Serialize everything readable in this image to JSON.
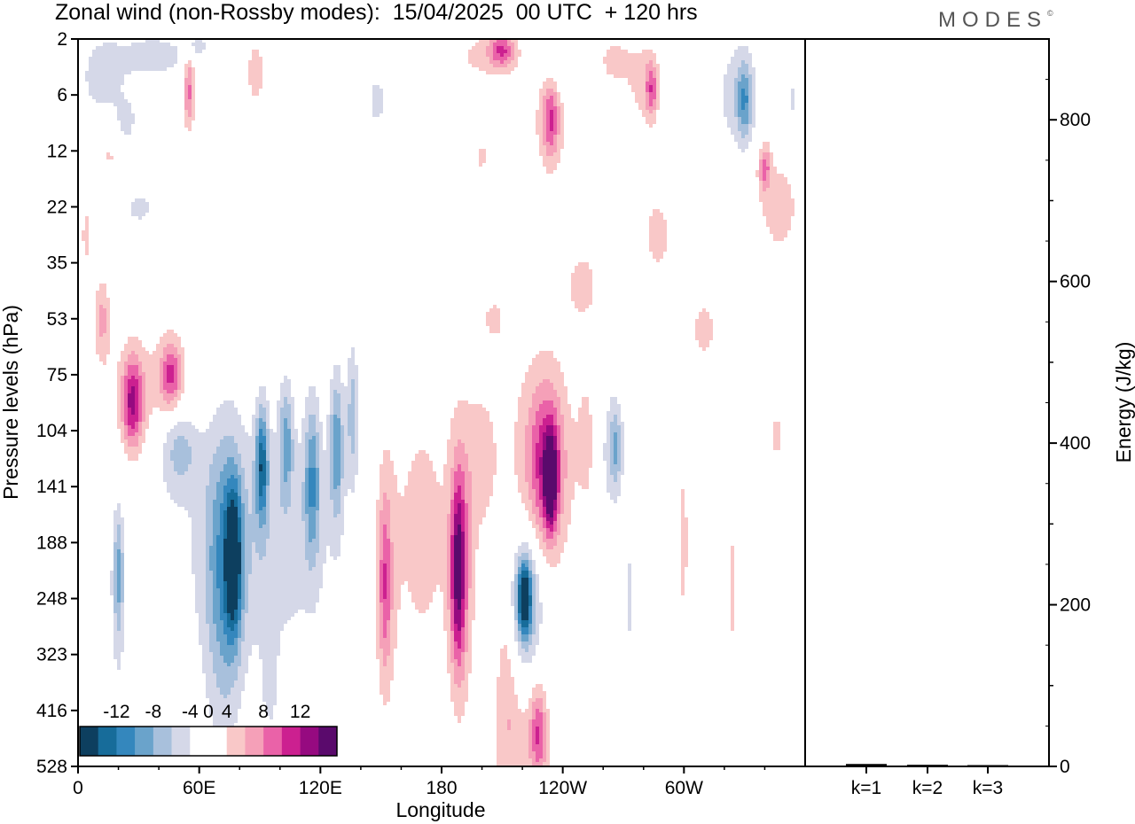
{
  "header": {
    "title": "Zonal wind (non-Rossby modes):  15/04/2025  00 UTC  + 120 hrs",
    "brand": "MODES",
    "brand_mark": "©"
  },
  "colors": {
    "negative": [
      "#0d3f5f",
      "#176c9a",
      "#3487bd",
      "#6aa3cb",
      "#a8c0dc",
      "#d5d8e8"
    ],
    "positive": [
      "#f9c8c8",
      "#f5a0b8",
      "#ea62a8",
      "#cc2090",
      "#960a80",
      "#5a0a6c"
    ],
    "zero": "#ffffff"
  },
  "chart_data": [
    {
      "type": "heatmap",
      "title": "Zonal wind (non-Rossby modes):  15/04/2025  00 UTC  + 120 hrs",
      "xlabel": "Longitude",
      "ylabel": "Pressure levels (hPa)",
      "x_ticks": [
        "0",
        "60E",
        "120E",
        "180",
        "120W",
        "60W"
      ],
      "x_tick_lon": [
        0,
        60,
        120,
        180,
        240,
        300
      ],
      "xlim": [
        0,
        360
      ],
      "y_ticks": [
        "2",
        "6",
        "12",
        "22",
        "35",
        "53",
        "75",
        "104",
        "141",
        "188",
        "248",
        "323",
        "416",
        "528"
      ],
      "colorbar": {
        "labels": [
          "-12",
          "-8",
          "-4",
          "0",
          "4",
          "8",
          "12"
        ],
        "levels": [
          -12,
          -10,
          -8,
          -6,
          -4,
          -2,
          2,
          4,
          6,
          8,
          10,
          12
        ]
      },
      "features": [
        {
          "lon": 77,
          "lev": 9.3,
          "amp": -11,
          "rx": 4,
          "ry": 1.3
        },
        {
          "lon": 91,
          "lev": 7.6,
          "amp": -10,
          "rx": 3,
          "ry": 1.0
        },
        {
          "lon": 72,
          "lev": 9.6,
          "amp": -6,
          "rx": 9,
          "ry": 2.8
        },
        {
          "lon": 103,
          "lev": 7.2,
          "amp": -6,
          "rx": 3.5,
          "ry": 1.0
        },
        {
          "lon": 116,
          "lev": 7.9,
          "amp": -7,
          "rx": 4,
          "ry": 1.4
        },
        {
          "lon": 128,
          "lev": 7.3,
          "amp": -7,
          "rx": 3.5,
          "ry": 1.3
        },
        {
          "lon": 136,
          "lev": 6.7,
          "amp": -5,
          "rx": 3,
          "ry": 1.2
        },
        {
          "lon": 50,
          "lev": 7.3,
          "amp": -5,
          "rx": 10,
          "ry": 0.8
        },
        {
          "lon": 90,
          "lev": 9,
          "amp": -3.4,
          "rx": 40,
          "ry": 2.2
        },
        {
          "lon": 20,
          "lev": 9.5,
          "amp": -5,
          "rx": 2.5,
          "ry": 1.0
        },
        {
          "lon": 20,
          "lev": 10.2,
          "amp": -2.4,
          "rx": 4,
          "ry": 1.8
        },
        {
          "lon": 95,
          "lev": 11.5,
          "amp": -2.4,
          "rx": 4,
          "ry": 1.0
        },
        {
          "lon": 221,
          "lev": 10,
          "amp": -11,
          "rx": 3,
          "ry": 0.6
        },
        {
          "lon": 222,
          "lev": 10,
          "amp": -5,
          "rx": 7,
          "ry": 1.1
        },
        {
          "lon": 222,
          "lev": 10,
          "amp": -2.4,
          "rx": 10,
          "ry": 1.7
        },
        {
          "lon": 266,
          "lev": 7.3,
          "amp": -4.5,
          "rx": 3,
          "ry": 0.7
        },
        {
          "lon": 264,
          "lev": 7.4,
          "amp": -2.4,
          "rx": 8,
          "ry": 1.3
        },
        {
          "lon": 273,
          "lev": 10.0,
          "amp": -2.4,
          "rx": 3,
          "ry": 1.3
        },
        {
          "lon": 27,
          "lev": 6.5,
          "amp": 9,
          "rx": 5,
          "ry": 0.8
        },
        {
          "lon": 46,
          "lev": 6.0,
          "amp": 7,
          "rx": 5,
          "ry": 0.6
        },
        {
          "lon": 38,
          "lev": 6.3,
          "amp": 2.7,
          "rx": 26,
          "ry": 1.1
        },
        {
          "lon": 12,
          "lev": 5.0,
          "amp": 4.5,
          "rx": 4,
          "ry": 0.7
        },
        {
          "lon": 188,
          "lev": 9.5,
          "amp": 9,
          "rx": 3.5,
          "ry": 1.6
        },
        {
          "lon": 190,
          "lev": 9.4,
          "amp": 5,
          "rx": 6,
          "ry": 2.4
        },
        {
          "lon": 152,
          "lev": 9.7,
          "amp": 5,
          "rx": 3,
          "ry": 1.5
        },
        {
          "lon": 152,
          "lev": 9.7,
          "amp": 2.7,
          "rx": 6,
          "ry": 2.4
        },
        {
          "lon": 170,
          "lev": 8.8,
          "amp": 2.6,
          "rx": 18,
          "ry": 3.0
        },
        {
          "lon": 200,
          "lev": 7.5,
          "amp": 2.6,
          "rx": 8,
          "ry": 1.4
        },
        {
          "lon": 234,
          "lev": 7.9,
          "amp": 11,
          "rx": 3,
          "ry": 0.8
        },
        {
          "lon": 232,
          "lev": 7.6,
          "amp": 7.5,
          "rx": 9,
          "ry": 1.4
        },
        {
          "lon": 228,
          "lev": 7.6,
          "amp": 2.8,
          "rx": 18,
          "ry": 2.2
        },
        {
          "lon": 252,
          "lev": 7.2,
          "amp": 2.7,
          "rx": 5,
          "ry": 1.2
        },
        {
          "lon": 228,
          "lev": 12.4,
          "amp": 6.5,
          "rx": 4,
          "ry": 0.8
        },
        {
          "lon": 220,
          "lev": 12.6,
          "amp": 2.8,
          "rx": 14,
          "ry": 1.4
        },
        {
          "lon": 212,
          "lev": 11.5,
          "amp": 2.7,
          "rx": 5,
          "ry": 1.8
        },
        {
          "lon": 300,
          "lev": 9.0,
          "amp": 2.4,
          "rx": 3,
          "ry": 2.5
        },
        {
          "lon": 324,
          "lev": 9.8,
          "amp": 2.4,
          "rx": 3,
          "ry": 1.8
        },
        {
          "lon": 346,
          "lev": 7.1,
          "amp": 2.4,
          "rx": 5,
          "ry": 0.7
        },
        {
          "lon": 24,
          "lev": 1.6,
          "amp": -4,
          "rx": 6,
          "ry": 0.5
        },
        {
          "lon": 12,
          "lev": 0.7,
          "amp": -3,
          "rx": 12,
          "ry": 0.8
        },
        {
          "lon": 38,
          "lev": 0.3,
          "amp": -3.2,
          "rx": 18,
          "ry": 0.4
        },
        {
          "lon": 59,
          "lev": 0.1,
          "amp": -2.8,
          "rx": 5,
          "ry": 0.2
        },
        {
          "lon": 30,
          "lev": 3.0,
          "amp": -2.4,
          "rx": 12,
          "ry": 0.5
        },
        {
          "lon": 330,
          "lev": 1.1,
          "amp": -6.5,
          "rx": 4,
          "ry": 0.7
        },
        {
          "lon": 325,
          "lev": 1.0,
          "amp": -2.6,
          "rx": 12,
          "ry": 1.1
        },
        {
          "lon": 241,
          "lev": 0.5,
          "amp": -2.4,
          "rx": 12,
          "ry": 0.5
        },
        {
          "lon": 148,
          "lev": 1.1,
          "amp": -2.4,
          "rx": 7,
          "ry": 0.7
        },
        {
          "lon": 354,
          "lev": 1.1,
          "amp": -2.4,
          "rx": 4,
          "ry": 0.6
        },
        {
          "lon": 55,
          "lev": 0.9,
          "amp": 6.5,
          "rx": 3,
          "ry": 0.7
        },
        {
          "lon": 88,
          "lev": 0.6,
          "amp": 2.7,
          "rx": 6,
          "ry": 0.8
        },
        {
          "lon": 210,
          "lev": 0.2,
          "amp": 6.5,
          "rx": 6,
          "ry": 0.3
        },
        {
          "lon": 203,
          "lev": 0.3,
          "amp": 2.7,
          "rx": 18,
          "ry": 0.5
        },
        {
          "lon": 234,
          "lev": 1.4,
          "amp": 6,
          "rx": 4,
          "ry": 0.7
        },
        {
          "lon": 234,
          "lev": 1.5,
          "amp": 2.7,
          "rx": 10,
          "ry": 1.0
        },
        {
          "lon": 284,
          "lev": 0.9,
          "amp": 6,
          "rx": 3,
          "ry": 0.5
        },
        {
          "lon": 280,
          "lev": 0.8,
          "amp": 2.7,
          "rx": 8,
          "ry": 0.8
        },
        {
          "lon": 265,
          "lev": 0.4,
          "amp": 2.6,
          "rx": 10,
          "ry": 0.5
        },
        {
          "lon": 20,
          "lev": 2.0,
          "amp": 2.7,
          "rx": 15,
          "ry": 0.6
        },
        {
          "lon": 340,
          "lev": 2.3,
          "amp": 6,
          "rx": 3,
          "ry": 0.4
        },
        {
          "lon": 347,
          "lev": 3.0,
          "amp": 2.7,
          "rx": 13,
          "ry": 1.1
        },
        {
          "lon": 287,
          "lev": 3.5,
          "amp": 2.6,
          "rx": 9,
          "ry": 0.9
        },
        {
          "lon": 250,
          "lev": 4.4,
          "amp": 2.6,
          "rx": 10,
          "ry": 0.8
        },
        {
          "lon": 206,
          "lev": 5.0,
          "amp": 2.6,
          "rx": 6,
          "ry": 0.4
        },
        {
          "lon": 310,
          "lev": 5.2,
          "amp": 2.6,
          "rx": 8,
          "ry": 0.7
        },
        {
          "lon": 4,
          "lev": 3.5,
          "amp": 2.5,
          "rx": 3,
          "ry": 0.8
        },
        {
          "lon": 200,
          "lev": 2.1,
          "amp": 2.5,
          "rx": 3,
          "ry": 0.4
        }
      ]
    },
    {
      "type": "bar",
      "categories": [
        "k=1",
        "k=2",
        "k=3"
      ],
      "values": [
        3,
        2,
        1
      ],
      "ylabel": "Energy (J/kg)",
      "y_ticks": [
        "0",
        "200",
        "400",
        "600",
        "800"
      ],
      "ylim": [
        0,
        900
      ]
    }
  ]
}
